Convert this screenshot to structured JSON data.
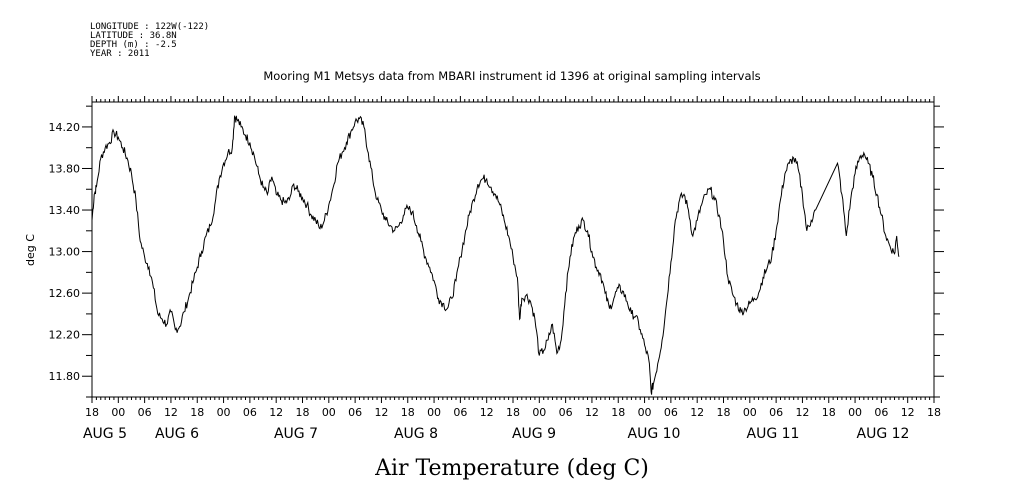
{
  "header": {
    "lines": [
      "LONGITUDE : 122W(-122)",
      "LATITUDE : 36.8N",
      "DEPTH (m) : -2.5",
      "YEAR : 2011"
    ],
    "title": "Mooring M1 Metsys data from MBARI instrument id 1396 at original sampling intervals"
  },
  "chart_data": {
    "type": "line",
    "title": "Mooring M1 Metsys data from MBARI instrument id 1396 at original sampling intervals",
    "xlabel": "Air Temperature (deg C)",
    "ylabel": "deg C",
    "x_unit": "hours from 2011-08-04 18:00",
    "xlim": [
      0,
      192
    ],
    "ylim": [
      11.6,
      14.44
    ],
    "y_ticks": [
      11.8,
      12.2,
      12.6,
      13.0,
      13.4,
      13.8,
      14.2
    ],
    "y_tick_labels": [
      "11.80",
      "12.20",
      "12.60",
      "13.00",
      "13.40",
      "13.80",
      "14.20"
    ],
    "x_tick_labels": [
      "18",
      "00",
      "06",
      "12",
      "18",
      "00",
      "06",
      "12",
      "18",
      "00",
      "06",
      "12",
      "18",
      "00",
      "06",
      "12",
      "18",
      "00",
      "06",
      "12",
      "18",
      "00",
      "06",
      "12",
      "18",
      "00",
      "06",
      "12",
      "18",
      "00",
      "06",
      "12",
      "18"
    ],
    "date_labels": [
      "AUG 5",
      "AUG 6",
      "AUG 7",
      "AUG 8",
      "AUG 9",
      "AUG 10",
      "AUG 11",
      "AUG 12"
    ],
    "date_label_hours": [
      6,
      30,
      54,
      78,
      102,
      126,
      150,
      174
    ],
    "grid": false,
    "series": [
      {
        "color": "#000000",
        "points": [
          [
            0,
            13.3
          ],
          [
            0.5,
            13.55
          ],
          [
            1,
            13.62
          ],
          [
            2,
            13.9
          ],
          [
            3,
            14.0
          ],
          [
            4,
            14.05
          ],
          [
            5,
            14.15
          ],
          [
            6,
            14.1
          ],
          [
            7,
            14.0
          ],
          [
            8,
            13.9
          ],
          [
            9,
            13.75
          ],
          [
            10,
            13.5
          ],
          [
            11,
            13.1
          ],
          [
            12,
            12.95
          ],
          [
            13,
            12.85
          ],
          [
            14,
            12.65
          ],
          [
            15,
            12.4
          ],
          [
            16,
            12.35
          ],
          [
            17,
            12.3
          ],
          [
            18,
            12.42
          ],
          [
            19,
            12.25
          ],
          [
            20,
            12.28
          ],
          [
            21,
            12.42
          ],
          [
            22,
            12.55
          ],
          [
            23,
            12.7
          ],
          [
            24,
            12.85
          ],
          [
            25,
            13.0
          ],
          [
            26,
            13.15
          ],
          [
            27,
            13.25
          ],
          [
            28,
            13.45
          ],
          [
            29,
            13.7
          ],
          [
            30,
            13.85
          ],
          [
            31,
            13.95
          ],
          [
            32,
            14.0
          ],
          [
            32.5,
            14.3
          ],
          [
            33,
            14.28
          ],
          [
            34,
            14.2
          ],
          [
            35,
            14.12
          ],
          [
            36,
            14.05
          ],
          [
            37,
            13.92
          ],
          [
            38,
            13.75
          ],
          [
            39,
            13.62
          ],
          [
            40,
            13.55
          ],
          [
            41,
            13.72
          ],
          [
            42,
            13.55
          ],
          [
            43,
            13.5
          ],
          [
            44,
            13.47
          ],
          [
            45,
            13.5
          ],
          [
            46,
            13.65
          ],
          [
            47,
            13.58
          ],
          [
            48,
            13.52
          ],
          [
            49,
            13.45
          ],
          [
            50,
            13.35
          ],
          [
            51,
            13.3
          ],
          [
            52,
            13.22
          ],
          [
            53,
            13.3
          ],
          [
            54,
            13.45
          ],
          [
            55,
            13.62
          ],
          [
            56,
            13.85
          ],
          [
            57,
            13.95
          ],
          [
            58,
            14.05
          ],
          [
            59,
            14.15
          ],
          [
            60,
            14.25
          ],
          [
            61,
            14.28
          ],
          [
            62,
            14.2
          ],
          [
            63,
            13.95
          ],
          [
            64,
            13.7
          ],
          [
            65,
            13.5
          ],
          [
            66,
            13.4
          ],
          [
            67,
            13.3
          ],
          [
            68,
            13.25
          ],
          [
            69,
            13.2
          ],
          [
            70,
            13.25
          ],
          [
            71,
            13.35
          ],
          [
            72,
            13.42
          ],
          [
            73,
            13.38
          ],
          [
            74,
            13.25
          ],
          [
            75,
            13.1
          ],
          [
            76,
            12.95
          ],
          [
            77,
            12.85
          ],
          [
            78,
            12.72
          ],
          [
            79,
            12.55
          ],
          [
            80,
            12.5
          ],
          [
            81,
            12.45
          ],
          [
            82,
            12.55
          ],
          [
            83,
            12.72
          ],
          [
            84,
            12.95
          ],
          [
            85,
            13.15
          ],
          [
            86,
            13.35
          ],
          [
            87,
            13.5
          ],
          [
            88,
            13.65
          ],
          [
            89,
            13.7
          ],
          [
            90,
            13.7
          ],
          [
            91,
            13.62
          ],
          [
            92,
            13.55
          ],
          [
            93,
            13.45
          ],
          [
            94,
            13.3
          ],
          [
            95,
            13.15
          ],
          [
            96,
            12.95
          ],
          [
            97,
            12.75
          ],
          [
            97.5,
            12.35
          ],
          [
            98,
            12.55
          ],
          [
            99,
            12.58
          ],
          [
            100,
            12.52
          ],
          [
            101,
            12.35
          ],
          [
            102,
            12.0
          ],
          [
            103,
            12.05
          ],
          [
            104,
            12.15
          ],
          [
            105,
            12.3
          ],
          [
            106,
            12.02
          ],
          [
            107,
            12.15
          ],
          [
            108,
            12.6
          ],
          [
            109,
            12.95
          ],
          [
            110,
            13.15
          ],
          [
            111,
            13.25
          ],
          [
            112,
            13.3
          ],
          [
            113,
            13.2
          ],
          [
            114,
            13.0
          ],
          [
            115,
            12.85
          ],
          [
            116,
            12.78
          ],
          [
            117,
            12.6
          ],
          [
            118,
            12.45
          ],
          [
            119,
            12.55
          ],
          [
            120,
            12.65
          ],
          [
            121,
            12.62
          ],
          [
            122,
            12.52
          ],
          [
            123,
            12.4
          ],
          [
            124,
            12.38
          ],
          [
            125,
            12.25
          ],
          [
            126,
            12.1
          ],
          [
            127,
            11.95
          ],
          [
            127.5,
            11.65
          ],
          [
            128,
            11.72
          ],
          [
            129,
            11.92
          ],
          [
            130,
            12.15
          ],
          [
            131,
            12.5
          ],
          [
            132,
            12.9
          ],
          [
            133,
            13.3
          ],
          [
            134,
            13.5
          ],
          [
            135,
            13.55
          ],
          [
            136,
            13.4
          ],
          [
            137,
            13.15
          ],
          [
            138,
            13.3
          ],
          [
            139,
            13.45
          ],
          [
            140,
            13.55
          ],
          [
            141,
            13.6
          ],
          [
            142,
            13.5
          ],
          [
            143,
            13.35
          ],
          [
            144,
            13.1
          ],
          [
            145,
            12.75
          ],
          [
            146,
            12.6
          ],
          [
            147,
            12.5
          ],
          [
            148,
            12.42
          ],
          [
            149,
            12.45
          ],
          [
            150,
            12.5
          ],
          [
            151,
            12.55
          ],
          [
            152,
            12.6
          ],
          [
            153,
            12.75
          ],
          [
            154,
            12.85
          ],
          [
            155,
            12.95
          ],
          [
            156,
            13.2
          ],
          [
            157,
            13.5
          ],
          [
            158,
            13.75
          ],
          [
            159,
            13.85
          ],
          [
            160,
            13.9
          ],
          [
            161,
            13.8
          ],
          [
            162,
            13.55
          ],
          [
            163,
            13.2
          ],
          [
            164,
            13.3
          ],
          [
            165,
            13.4
          ],
          [
            170,
            13.85
          ],
          [
            171,
            13.55
          ],
          [
            172,
            13.15
          ],
          [
            173,
            13.5
          ],
          [
            174,
            13.75
          ],
          [
            175,
            13.9
          ],
          [
            176,
            13.95
          ],
          [
            177,
            13.85
          ],
          [
            178,
            13.72
          ],
          [
            179,
            13.55
          ],
          [
            180,
            13.35
          ],
          [
            181,
            13.15
          ],
          [
            182,
            13.05
          ],
          [
            183,
            12.98
          ],
          [
            183.5,
            13.15
          ],
          [
            184,
            12.95
          ]
        ]
      }
    ]
  }
}
